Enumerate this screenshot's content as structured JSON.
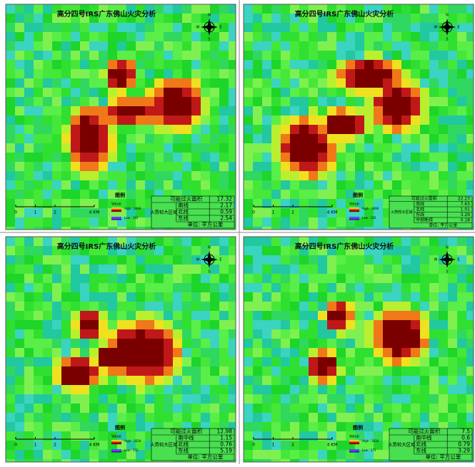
{
  "panels": [
    {
      "title": "高分四号IRS广东佛山火灾分析",
      "north": [
        "N",
        "S",
        "E",
        "W"
      ],
      "scale": [
        "0",
        "1",
        "2",
        "4 KM"
      ],
      "legend": {
        "title": "图例",
        "heading": "Value",
        "high": "High : 3096",
        "low": "Low : 162"
      },
      "table": {
        "total_label": "可能过火面积",
        "total": 17.32,
        "zone_label": "火势较大区域",
        "rows": [
          [
            "南线",
            2.17
          ],
          [
            "北线",
            0.59
          ],
          [
            "东线",
            2.54
          ]
        ],
        "unit": "单位: 平方公里"
      }
    },
    {
      "title": "高分四号IRS广东佛山火灾分析",
      "north": [
        "N",
        "S",
        "E",
        "W"
      ],
      "scale": [
        "0",
        "1",
        "2",
        "4 KM"
      ],
      "legend": {
        "title": "图例",
        "heading": "Value",
        "high": "High : 3096",
        "low": "Low : 162"
      },
      "table": {
        "total_label": "可能过火面积",
        "total": 22.23,
        "zone_label": "火势较大区域",
        "rows": [
          [
            "南线",
            7.63
          ],
          [
            "北线",
            1.01
          ],
          [
            "东线",
            3.29
          ],
          [
            "中部断续",
            0.18
          ]
        ],
        "unit": "单位: 平方公里"
      }
    },
    {
      "title": "高分四号IRS广东佛山火灾分析",
      "north": [
        "N",
        "S",
        "E",
        "W"
      ],
      "scale": [
        "0",
        "1",
        "2",
        "4 KM"
      ],
      "legend": {
        "title": "图例",
        "heading": "Value",
        "high": "High : 3030",
        "low": "Low : 152"
      },
      "table": {
        "total_label": "可能过火面积",
        "total": 12.98,
        "zone_label": "火势较大区域",
        "rows": [
          [
            "南中线",
            1.15
          ],
          [
            "北线",
            0.76
          ],
          [
            "东线",
            5.19
          ]
        ],
        "unit": "单位: 平方公里"
      }
    },
    {
      "title": "高分四号IRS广东佛山火灾分析",
      "north": [
        "N",
        "S",
        "E",
        "W"
      ],
      "scale": [
        "0",
        "1",
        "2",
        "4 KM"
      ],
      "legend": {
        "title": "图例",
        "heading": "Value",
        "high": "High : 3030",
        "low": "Low : 171"
      },
      "table": {
        "total_label": "可能过火面积",
        "total": 7.5,
        "zone_label": "火势较大区域",
        "rows": [
          [
            "南中线",
            0.6
          ],
          [
            "北线",
            0.79
          ],
          [
            "东线",
            3.29
          ]
        ],
        "unit": "单位: 平方公里"
      }
    }
  ]
}
